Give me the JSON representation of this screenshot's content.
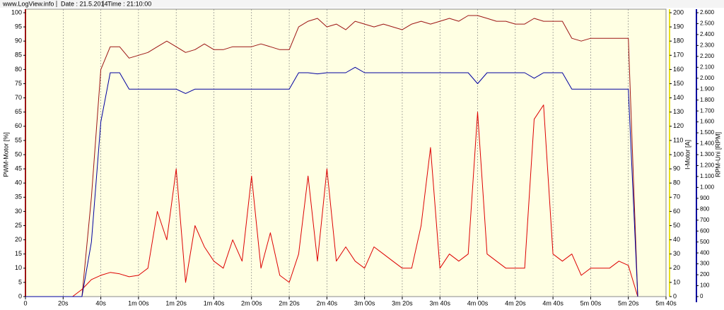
{
  "header": {
    "site": "www.LogView.info",
    "date": "Date : 21.5.2014",
    "time": "Time : 21:10:00"
  },
  "chart_data": {
    "type": "line",
    "x": [
      0,
      5,
      10,
      15,
      20,
      25,
      30,
      35,
      40,
      45,
      50,
      55,
      60,
      65,
      70,
      75,
      80,
      85,
      90,
      95,
      100,
      105,
      110,
      115,
      120,
      125,
      130,
      135,
      140,
      145,
      150,
      155,
      160,
      165,
      170,
      175,
      180,
      185,
      190,
      195,
      200,
      205,
      210,
      215,
      220,
      225,
      230,
      235,
      240,
      245,
      250,
      255,
      260,
      265,
      270,
      275,
      280,
      285,
      290,
      295,
      300,
      305,
      310,
      315,
      320,
      325
    ],
    "xlim": [
      0,
      340
    ],
    "xticks": [
      0,
      {
        "value": 20,
        "label": "20s"
      },
      {
        "value": 40,
        "label": "40s"
      },
      {
        "value": 60,
        "label": "1m 00s"
      },
      {
        "value": 80,
        "label": "1m 20s"
      },
      {
        "value": 100,
        "label": "1m 40s"
      },
      {
        "value": 120,
        "label": "2m 00s"
      },
      {
        "value": 140,
        "label": "2m 20s"
      },
      {
        "value": 160,
        "label": "2m 40s"
      },
      {
        "value": 180,
        "label": "3m 00s"
      },
      {
        "value": 200,
        "label": "3m 20s"
      },
      {
        "value": 220,
        "label": "3m 40s"
      },
      {
        "value": 240,
        "label": "4m 00s"
      },
      {
        "value": 260,
        "label": "4m 20s"
      },
      {
        "value": 280,
        "label": "4m 40s"
      },
      {
        "value": 300,
        "label": "5m 00s"
      },
      {
        "value": 320,
        "label": "5m 20s"
      },
      {
        "value": 340,
        "label": "5m 40s"
      }
    ],
    "ylabel": "PWM-Motor [%]",
    "ylim": [
      0,
      100
    ],
    "yticks": [
      0,
      5,
      10,
      15,
      20,
      25,
      30,
      35,
      40,
      45,
      50,
      55,
      60,
      65,
      70,
      75,
      80,
      85,
      90,
      95,
      100
    ],
    "y2label": "I-Motor [A]",
    "y2lim": [
      0,
      200
    ],
    "y2ticks": [
      0,
      10,
      20,
      30,
      40,
      50,
      60,
      70,
      80,
      90,
      100,
      110,
      120,
      130,
      140,
      150,
      160,
      170,
      180,
      190,
      200
    ],
    "y3label": "RPM-Uni [RPM]",
    "y3lim": [
      0,
      2600
    ],
    "y3ticks": [
      0,
      100,
      200,
      300,
      400,
      500,
      600,
      700,
      800,
      900,
      {
        "value": 1000,
        "label": "1.000"
      },
      {
        "value": 1100,
        "label": "1.100"
      },
      {
        "value": 1200,
        "label": "1.200"
      },
      {
        "value": 1300,
        "label": "1.300"
      },
      {
        "value": 1400,
        "label": "1.400"
      },
      {
        "value": 1500,
        "label": "1.500"
      },
      {
        "value": 1600,
        "label": "1.600"
      },
      {
        "value": 1700,
        "label": "1.700"
      },
      {
        "value": 1800,
        "label": "1.800"
      },
      {
        "value": 1900,
        "label": "1.900"
      },
      {
        "value": 2000,
        "label": "2.000"
      },
      {
        "value": 2100,
        "label": "2.100"
      },
      {
        "value": 2200,
        "label": "2.200"
      },
      {
        "value": 2300,
        "label": "2.300"
      },
      {
        "value": 2400,
        "label": "2.400"
      },
      {
        "value": 2500,
        "label": "2.500"
      },
      {
        "value": 2600,
        "label": "2.600"
      }
    ],
    "grid": true,
    "series": [
      {
        "name": "PWM-Motor",
        "color": "#9c1414",
        "axis": "y",
        "values": [
          0,
          0,
          0,
          0,
          0,
          0,
          0,
          35,
          80,
          88,
          88,
          84,
          85,
          86,
          88,
          90,
          88,
          86,
          87,
          89,
          87,
          87,
          88,
          88,
          88,
          89,
          88,
          87,
          87,
          95,
          97,
          98,
          95,
          96,
          94,
          97,
          96,
          95,
          96,
          95,
          94,
          96,
          97,
          96,
          97,
          98,
          97,
          99,
          99,
          98,
          97,
          97,
          96,
          96,
          98,
          97,
          97,
          97,
          91,
          90,
          91,
          91,
          91,
          91,
          91,
          0
        ]
      },
      {
        "name": "I-Motor",
        "color": "#dd0000",
        "axis": "y2",
        "values": [
          0,
          0,
          0,
          0,
          0,
          0,
          5,
          12,
          15,
          17,
          16,
          14,
          15,
          20,
          60,
          40,
          90,
          10,
          50,
          35,
          25,
          20,
          40,
          25,
          85,
          20,
          45,
          15,
          10,
          30,
          85,
          25,
          90,
          25,
          35,
          25,
          20,
          35,
          30,
          25,
          20,
          20,
          50,
          105,
          20,
          30,
          25,
          30,
          130,
          30,
          25,
          20,
          20,
          20,
          125,
          135,
          30,
          25,
          30,
          15,
          20,
          20,
          20,
          25,
          22,
          0
        ]
      },
      {
        "name": "RPM-Uni",
        "color": "#0000a0",
        "axis": "y3",
        "values": [
          0,
          0,
          0,
          0,
          0,
          0,
          0,
          500,
          1600,
          2050,
          2050,
          1900,
          1900,
          1900,
          1900,
          1900,
          1900,
          1860,
          1900,
          1900,
          1900,
          1900,
          1900,
          1900,
          1900,
          1900,
          1900,
          1900,
          1900,
          2050,
          2050,
          2040,
          2050,
          2050,
          2050,
          2100,
          2050,
          2050,
          2050,
          2050,
          2050,
          2050,
          2050,
          2050,
          2050,
          2050,
          2050,
          2050,
          1950,
          2050,
          2050,
          2050,
          2050,
          2050,
          2000,
          2050,
          2050,
          2050,
          1900,
          1900,
          1900,
          1900,
          1900,
          1900,
          1900,
          0
        ]
      }
    ]
  }
}
